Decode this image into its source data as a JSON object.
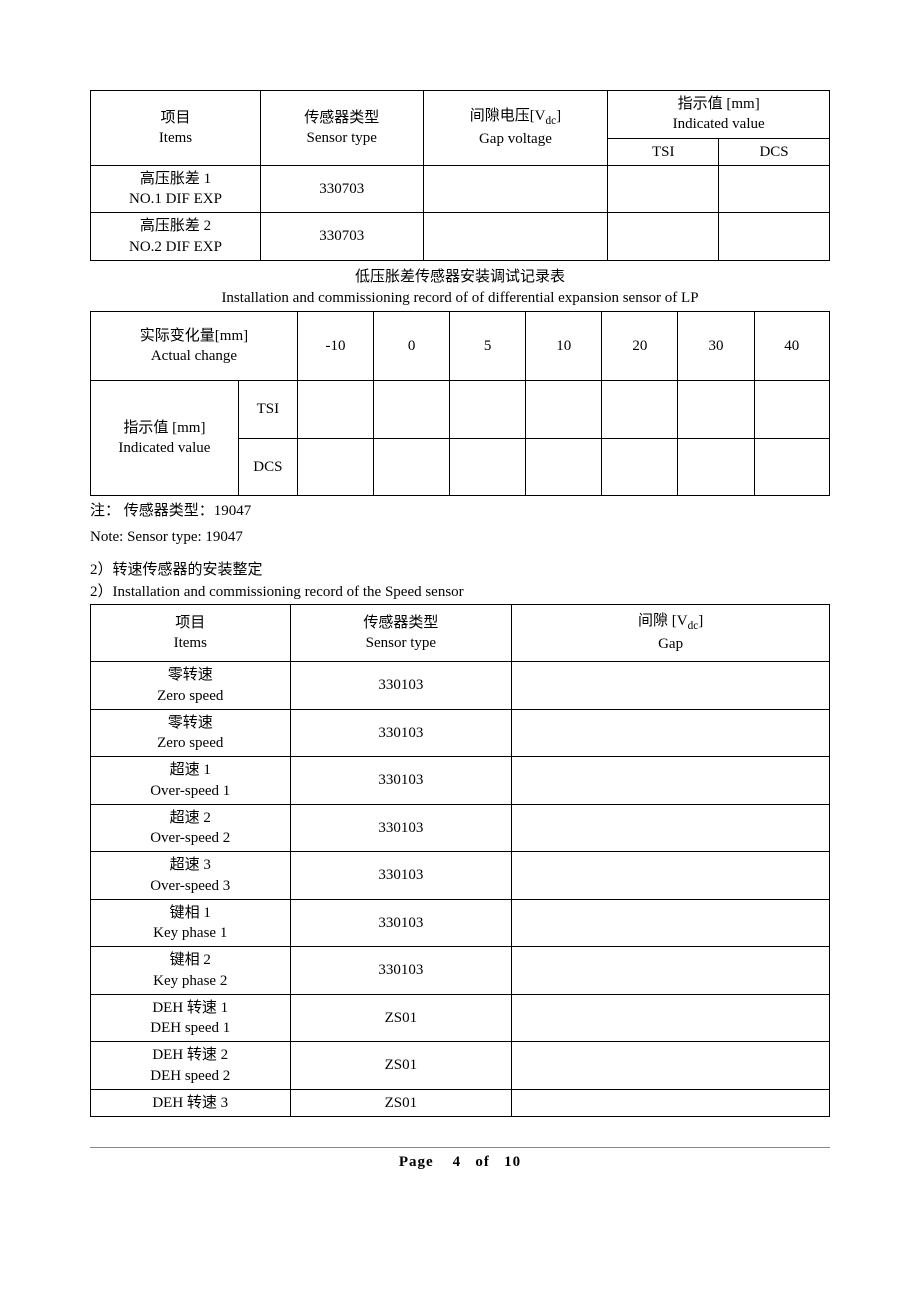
{
  "table1": {
    "header": {
      "items": {
        "zh": "项目",
        "en": "Items"
      },
      "sensor": {
        "zh": "传感器类型",
        "en": "Sensor type"
      },
      "gap": {
        "zh_pre": "间隙电压[V",
        "zh_sub": "dc",
        "zh_post": "]",
        "en": "Gap voltage"
      },
      "indicated": {
        "zh": "指示值  [mm]",
        "en": "Indicated value"
      },
      "tsi": "TSI",
      "dcs": "DCS"
    },
    "rows": [
      {
        "zh": "高压胀差  1",
        "en": "NO.1 DIF EXP",
        "sensor": "330703",
        "gap": "",
        "tsi": "",
        "dcs": ""
      },
      {
        "zh": "高压胀差  2",
        "en": "NO.2 DIF EXP",
        "sensor": "330703",
        "gap": "",
        "tsi": "",
        "dcs": ""
      }
    ]
  },
  "section_lp": {
    "title_zh": "低压胀差传感器安装调试记录表",
    "title_en": "Installation and commissioning record of of differential expansion sensor of LP"
  },
  "table2": {
    "actual": {
      "zh": "实际变化量[mm]",
      "en": "Actual change"
    },
    "indicated": {
      "zh": "指示值  [mm]",
      "en": "Indicated value"
    },
    "cols": [
      "-10",
      "0",
      "5",
      "10",
      "20",
      "30",
      "40"
    ],
    "tsi_label": "TSI",
    "dcs_label": "DCS",
    "tsi_vals": [
      "",
      "",
      "",
      "",
      "",
      "",
      ""
    ],
    "dcs_vals": [
      "",
      "",
      "",
      "",
      "",
      "",
      ""
    ]
  },
  "note": {
    "zh": "注：   传感器类型：19047",
    "en": "Note: Sensor type: 19047"
  },
  "section_speed": {
    "zh": "2）转速传感器的安装整定",
    "en": "2）Installation and commissioning record of the Speed sensor"
  },
  "table3": {
    "header": {
      "items": {
        "zh": "项目",
        "en": "Items"
      },
      "sensor": {
        "zh": "传感器类型",
        "en": "Sensor type"
      },
      "gap": {
        "zh_pre": "间隙  [V",
        "zh_sub": "dc",
        "zh_post": "]",
        "en": "Gap"
      }
    },
    "rows": [
      {
        "zh": "零转速",
        "en": "Zero speed",
        "sensor": "330103",
        "gap": ""
      },
      {
        "zh": "零转速",
        "en": "Zero speed",
        "sensor": "330103",
        "gap": ""
      },
      {
        "zh": "超速 1",
        "en": "Over-speed 1",
        "sensor": "330103",
        "gap": ""
      },
      {
        "zh": "超速 2",
        "en": "Over-speed 2",
        "sensor": "330103",
        "gap": ""
      },
      {
        "zh": "超速 3",
        "en": "Over-speed 3",
        "sensor": "330103",
        "gap": ""
      },
      {
        "zh": "键相 1",
        "en": "Key phase 1",
        "sensor": "330103",
        "gap": ""
      },
      {
        "zh": "键相 2",
        "en": "Key phase 2",
        "sensor": "330103",
        "gap": ""
      },
      {
        "zh": "DEH 转速 1",
        "en": "DEH speed 1",
        "sensor": "ZS01",
        "gap": ""
      },
      {
        "zh": "DEH 转速 2",
        "en": "DEH speed 2",
        "sensor": "ZS01",
        "gap": ""
      },
      {
        "zh": "DEH 转速 3",
        "en": "",
        "sensor": "ZS01",
        "gap": ""
      }
    ]
  },
  "footer": {
    "label_page": "Page",
    "current": "4",
    "of": "of",
    "total": "10"
  }
}
